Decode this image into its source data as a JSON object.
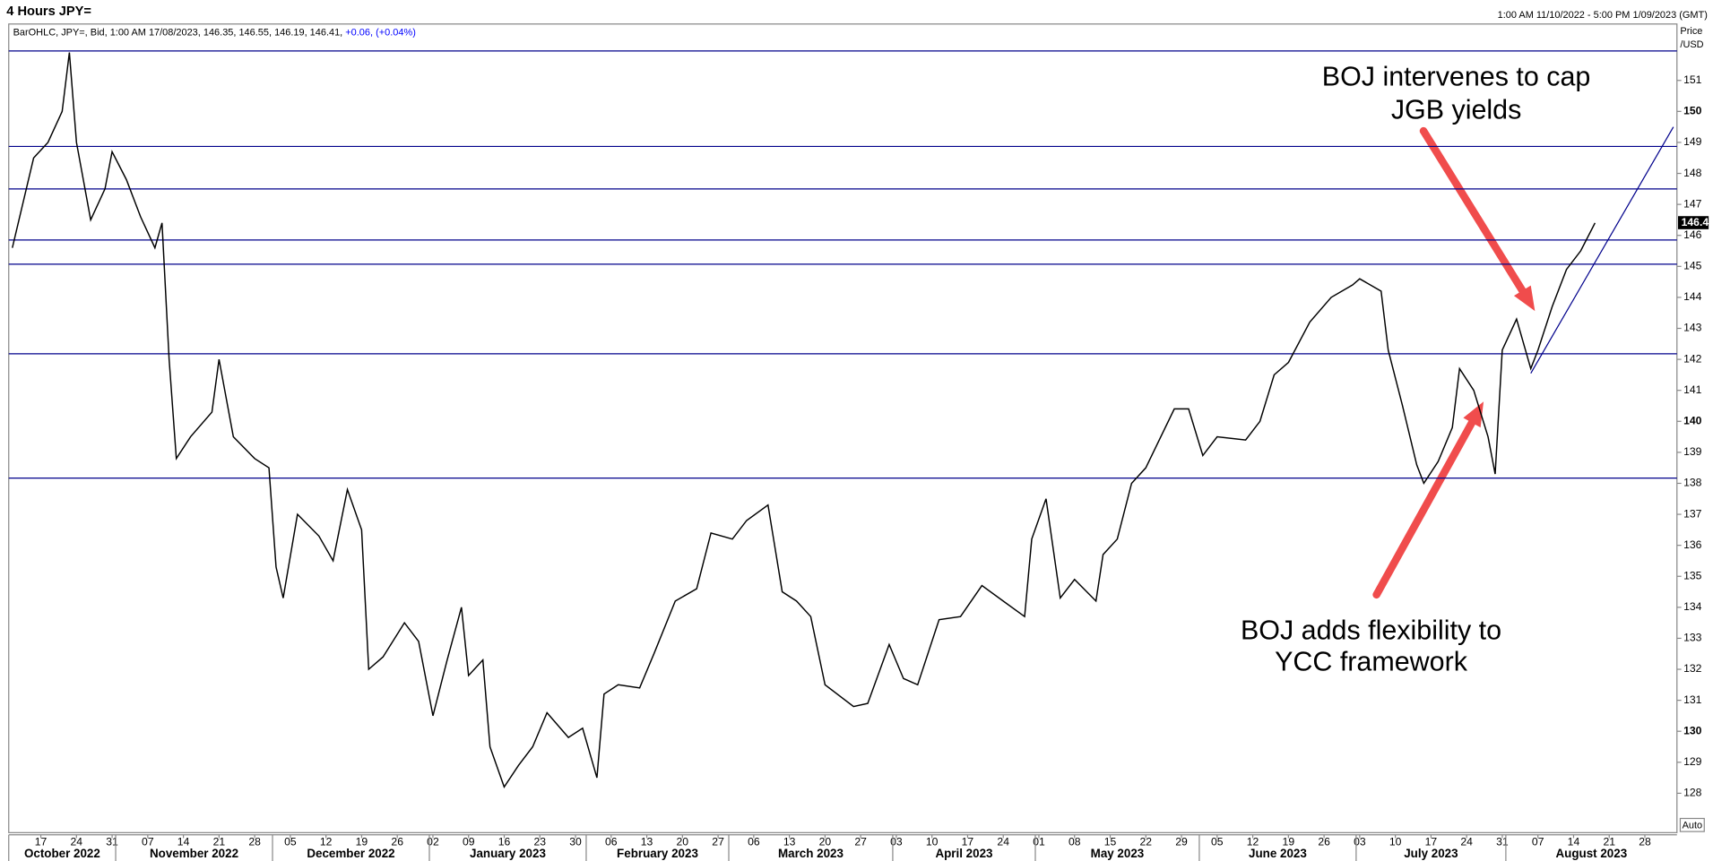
{
  "chart_data": {
    "type": "line",
    "title": "4 Hours JPY=",
    "period": "1:00 AM 11/10/2022 - 5:00 PM 1/09/2023 (GMT)",
    "info": "BarOHLC, JPY=, Bid, 1:00 AM 17/08/2023, 146.35, 146.55, 146.19, 146.41,",
    "change": "+0.06, (+0.04%)",
    "y_axis_label": [
      "Price",
      "/USD"
    ],
    "scale_mode": "Auto",
    "last_price": 146.41,
    "color": "#000000",
    "x": [
      "2022-10-11",
      "2022-10-14",
      "2022-10-18",
      "2022-10-20",
      "2022-10-21",
      "2022-10-24",
      "2022-10-26",
      "2022-10-28",
      "2022-10-31",
      "2022-11-02",
      "2022-11-04",
      "2022-11-08",
      "2022-11-09",
      "2022-11-10",
      "2022-11-11",
      "2022-11-15",
      "2022-11-18",
      "2022-11-21",
      "2022-11-23",
      "2022-11-28",
      "2022-11-30",
      "2022-12-01",
      "2022-12-02",
      "2022-12-06",
      "2022-12-09",
      "2022-12-13",
      "2022-12-15",
      "2022-12-19",
      "2022-12-20",
      "2022-12-22",
      "2022-12-27",
      "2022-12-29",
      "2023-01-02",
      "2023-01-04",
      "2023-01-06",
      "2023-01-09",
      "2023-01-11",
      "2023-01-12",
      "2023-01-16",
      "2023-01-18",
      "2023-01-20",
      "2023-01-24",
      "2023-01-27",
      "2023-01-31",
      "2023-02-02",
      "2023-02-03",
      "2023-02-07",
      "2023-02-10",
      "2023-02-14",
      "2023-02-17",
      "2023-02-22",
      "2023-02-24",
      "2023-03-01",
      "2023-03-03",
      "2023-03-08",
      "2023-03-10",
      "2023-03-14",
      "2023-03-16",
      "2023-03-20",
      "2023-03-24",
      "2023-03-28",
      "2023-03-31",
      "2023-04-04",
      "2023-04-06",
      "2023-04-11",
      "2023-04-14",
      "2023-04-19",
      "2023-04-24",
      "2023-04-27",
      "2023-04-28",
      "2023-05-02",
      "2023-05-04",
      "2023-05-08",
      "2023-05-11",
      "2023-05-12",
      "2023-05-16",
      "2023-05-18",
      "2023-05-22",
      "2023-05-26",
      "2023-05-30",
      "2023-06-01",
      "2023-06-05",
      "2023-06-09",
      "2023-06-13",
      "2023-06-15",
      "2023-06-19",
      "2023-06-22",
      "2023-06-27",
      "2023-06-30",
      "2023-07-03",
      "2023-07-06",
      "2023-07-07",
      "2023-07-11",
      "2023-07-13",
      "2023-07-14",
      "2023-07-18",
      "2023-07-20",
      "2023-07-21",
      "2023-07-25",
      "2023-07-27",
      "2023-07-28",
      "2023-07-31",
      "2023-08-02",
      "2023-08-04",
      "2023-08-07",
      "2023-08-09",
      "2023-08-11",
      "2023-08-15",
      "2023-08-17"
    ],
    "values": [
      145.6,
      148.5,
      149.0,
      150.0,
      151.9,
      149.0,
      146.5,
      147.5,
      148.7,
      147.8,
      146.6,
      145.6,
      146.4,
      142.0,
      138.8,
      139.5,
      140.3,
      142.0,
      139.5,
      138.8,
      138.5,
      135.3,
      134.3,
      137.0,
      136.3,
      135.5,
      137.8,
      136.5,
      132.0,
      132.4,
      133.5,
      132.9,
      130.5,
      132.3,
      134.0,
      131.8,
      132.3,
      129.5,
      128.2,
      128.9,
      129.5,
      130.6,
      129.8,
      130.1,
      128.5,
      131.2,
      131.5,
      131.4,
      132.5,
      134.2,
      134.6,
      136.4,
      136.2,
      136.8,
      137.3,
      134.5,
      134.2,
      133.7,
      131.5,
      130.8,
      130.9,
      132.8,
      131.7,
      131.5,
      133.6,
      133.7,
      134.7,
      134.2,
      133.7,
      136.2,
      137.5,
      134.3,
      134.9,
      134.2,
      135.7,
      136.2,
      138.0,
      138.5,
      140.4,
      140.4,
      138.9,
      139.5,
      139.4,
      140.0,
      141.5,
      141.9,
      143.2,
      144.0,
      144.4,
      144.6,
      144.2,
      142.3,
      140.5,
      138.6,
      138.0,
      138.7,
      139.8,
      141.7,
      141.0,
      139.5,
      138.3,
      142.3,
      143.3,
      141.7,
      142.3,
      143.7,
      144.9,
      145.5,
      146.4
    ],
    "xlim": [
      "2022-10-11",
      "2023-09-01"
    ],
    "ylim": [
      126.73,
      152.82
    ],
    "yticks": [
      128,
      129,
      130,
      131,
      132,
      133,
      134,
      135,
      136,
      137,
      138,
      139,
      140,
      141,
      142,
      143,
      144,
      145,
      146,
      147,
      148,
      149,
      150,
      151
    ],
    "xticks": [
      {
        "value": "2022-10-17",
        "label": "17"
      },
      {
        "value": "2022-10-24",
        "label": "24"
      },
      {
        "value": "2022-10-31",
        "label": "31"
      },
      {
        "value": "2022-11-07",
        "label": "07"
      },
      {
        "value": "2022-11-14",
        "label": "14"
      },
      {
        "value": "2022-11-21",
        "label": "21"
      },
      {
        "value": "2022-11-28",
        "label": "28"
      },
      {
        "value": "2022-12-05",
        "label": "05"
      },
      {
        "value": "2022-12-12",
        "label": "12"
      },
      {
        "value": "2022-12-19",
        "label": "19"
      },
      {
        "value": "2022-12-26",
        "label": "26"
      },
      {
        "value": "2023-01-02",
        "label": "02"
      },
      {
        "value": "2023-01-09",
        "label": "09"
      },
      {
        "value": "2023-01-16",
        "label": "16"
      },
      {
        "value": "2023-01-23",
        "label": "23"
      },
      {
        "value": "2023-01-30",
        "label": "30"
      },
      {
        "value": "2023-02-06",
        "label": "06"
      },
      {
        "value": "2023-02-13",
        "label": "13"
      },
      {
        "value": "2023-02-20",
        "label": "20"
      },
      {
        "value": "2023-02-27",
        "label": "27"
      },
      {
        "value": "2023-03-06",
        "label": "06"
      },
      {
        "value": "2023-03-13",
        "label": "13"
      },
      {
        "value": "2023-03-20",
        "label": "20"
      },
      {
        "value": "2023-03-27",
        "label": "27"
      },
      {
        "value": "2023-04-03",
        "label": "03"
      },
      {
        "value": "2023-04-10",
        "label": "10"
      },
      {
        "value": "2023-04-17",
        "label": "17"
      },
      {
        "value": "2023-04-24",
        "label": "24"
      },
      {
        "value": "2023-05-01",
        "label": "01"
      },
      {
        "value": "2023-05-08",
        "label": "08"
      },
      {
        "value": "2023-05-15",
        "label": "15"
      },
      {
        "value": "2023-05-22",
        "label": "22"
      },
      {
        "value": "2023-05-29",
        "label": "29"
      },
      {
        "value": "2023-06-05",
        "label": "05"
      },
      {
        "value": "2023-06-12",
        "label": "12"
      },
      {
        "value": "2023-06-19",
        "label": "19"
      },
      {
        "value": "2023-06-26",
        "label": "26"
      },
      {
        "value": "2023-07-03",
        "label": "03"
      },
      {
        "value": "2023-07-10",
        "label": "10"
      },
      {
        "value": "2023-07-17",
        "label": "17"
      },
      {
        "value": "2023-07-24",
        "label": "24"
      },
      {
        "value": "2023-07-31",
        "label": "31"
      },
      {
        "value": "2023-08-07",
        "label": "07"
      },
      {
        "value": "2023-08-14",
        "label": "14"
      },
      {
        "value": "2023-08-21",
        "label": "21"
      },
      {
        "value": "2023-08-28",
        "label": "28"
      }
    ],
    "months": [
      {
        "value": "2022-10-11",
        "label": "October 2022"
      },
      {
        "value": "2022-11-01",
        "label": "November 2022"
      },
      {
        "value": "2022-12-01",
        "label": "December 2022"
      },
      {
        "value": "2023-01-02",
        "label": "January 2023"
      },
      {
        "value": "2023-02-01",
        "label": "February 2023"
      },
      {
        "value": "2023-03-01",
        "label": "March 2023"
      },
      {
        "value": "2023-04-03",
        "label": "April 2023"
      },
      {
        "value": "2023-05-01",
        "label": "May 2023"
      },
      {
        "value": "2023-06-01",
        "label": "June 2023"
      },
      {
        "value": "2023-07-03",
        "label": "July 2023"
      },
      {
        "value": "2023-08-01",
        "label": "August 2023"
      }
    ],
    "reference_lines": {
      "color": "#00008b",
      "values": [
        151.95,
        148.87,
        147.5,
        145.85,
        145.07,
        142.18,
        138.17
      ]
    },
    "trendline": {
      "color": "#00008b",
      "x": [
        "2023-08-04",
        "2023-09-01"
      ],
      "values": [
        141.55,
        149.5
      ]
    },
    "annotations": [
      {
        "lines": [
          "BOJ intervenes to cap",
          "JGB yields"
        ]
      },
      {
        "lines": [
          "BOJ adds flexibility to",
          "YCC framework"
        ]
      }
    ]
  }
}
